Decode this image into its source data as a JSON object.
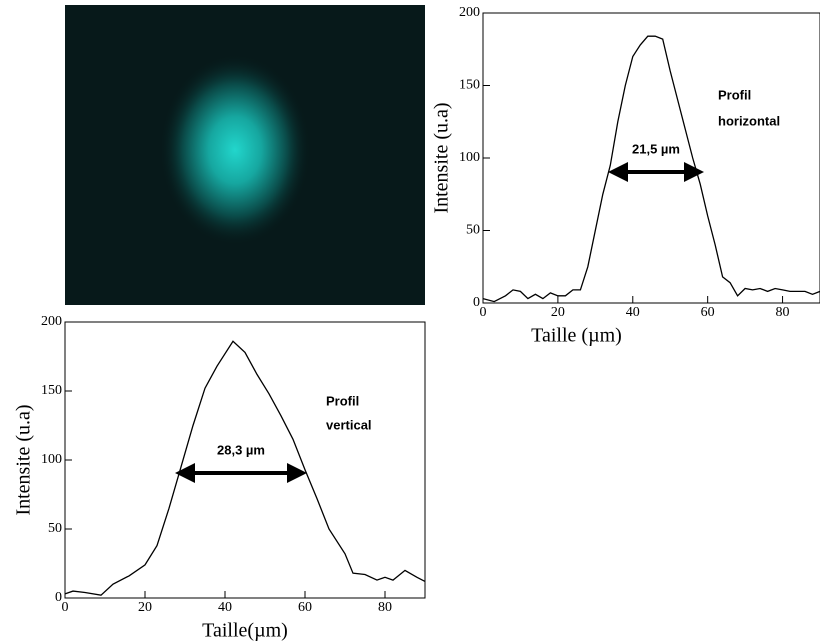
{
  "chart_data": [
    {
      "type": "line",
      "xlabel": "Taille (µm)",
      "ylabel": "Intensite (u.a)",
      "color": "#000000",
      "x": [
        0,
        3,
        6,
        8,
        10,
        12,
        14,
        16,
        18,
        20,
        22,
        24,
        26,
        28,
        30,
        32,
        34,
        36,
        38,
        40,
        42,
        44,
        46,
        48,
        50,
        52,
        54,
        56,
        58,
        60,
        62,
        64,
        66,
        68,
        70,
        72,
        74,
        76,
        78,
        80,
        82,
        84,
        86,
        88,
        90
      ],
      "values": [
        3,
        1,
        5,
        9,
        8,
        3,
        6,
        3,
        7,
        5,
        5,
        9,
        9,
        25,
        50,
        75,
        95,
        125,
        150,
        170,
        178,
        184,
        184,
        182,
        160,
        140,
        120,
        100,
        82,
        60,
        40,
        18,
        14,
        5,
        10,
        9,
        10,
        8,
        10,
        9,
        8,
        8,
        8,
        6,
        8
      ],
      "xlim": [
        0,
        90
      ],
      "ylim": [
        0,
        200
      ],
      "xticks": [
        0,
        20,
        40,
        60,
        80
      ],
      "yticks": [
        0,
        50,
        100,
        150,
        200
      ],
      "annotations": [
        "Profil",
        "horizontal",
        "21,5 µm"
      ]
    },
    {
      "type": "line",
      "xlabel": "Taille(µm)",
      "ylabel": "Intensite (u.a)",
      "color": "#000000",
      "x": [
        0,
        2,
        5,
        9,
        12,
        16,
        20,
        23,
        26,
        29,
        32,
        35,
        38,
        42,
        45,
        48,
        51,
        54,
        57,
        60,
        63,
        66,
        70,
        72,
        75,
        78,
        80,
        82,
        85,
        88,
        90
      ],
      "values": [
        3,
        5,
        4,
        2,
        10,
        16,
        24,
        38,
        65,
        95,
        125,
        152,
        168,
        186,
        178,
        162,
        148,
        132,
        115,
        93,
        72,
        50,
        32,
        18,
        17,
        13,
        15,
        13,
        20,
        15,
        12
      ],
      "xlim": [
        0,
        90
      ],
      "ylim": [
        0,
        200
      ],
      "xticks": [
        0,
        20,
        40,
        60,
        80
      ],
      "yticks": [
        0,
        50,
        100,
        150,
        200
      ],
      "annotations": [
        "Profil",
        "vertical",
        "28,3 µm"
      ]
    }
  ]
}
